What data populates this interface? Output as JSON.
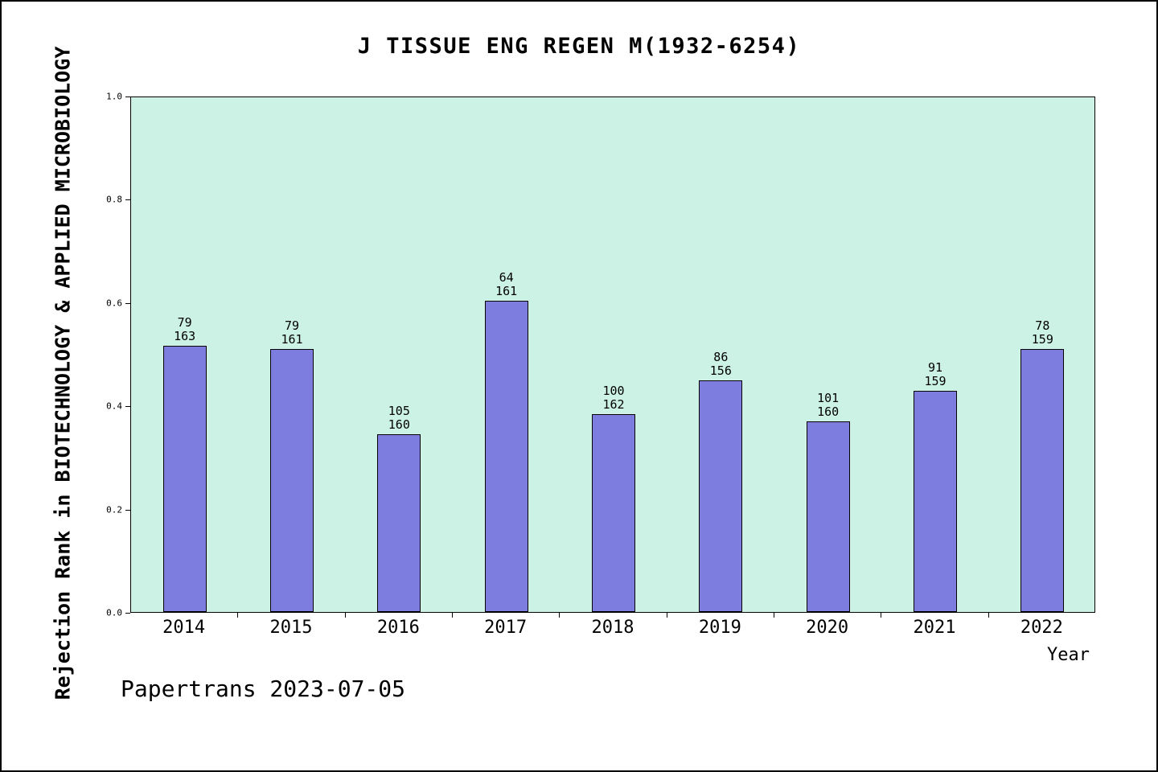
{
  "title": "J TISSUE ENG REGEN M(1932-6254)",
  "footer": "Papertrans 2023-07-05",
  "colors": {
    "plot_background": "#ccf2e6",
    "bar_fill": "#7d7de0",
    "bar_border": "#000000",
    "axis": "#000000"
  },
  "chart_data": {
    "type": "bar",
    "title": "J TISSUE ENG REGEN M(1932-6254)",
    "xlabel": "Year",
    "ylabel": "Rejection Rank in BIOTECHNOLOGY & APPLIED MICROBIOLOGY",
    "ylim": [
      0.0,
      1.0
    ],
    "yticks": [
      "0.0",
      "0.2",
      "0.4",
      "0.6",
      "0.8",
      "1.0"
    ],
    "grid": false,
    "legend": "none",
    "categories": [
      "2014",
      "2015",
      "2016",
      "2017",
      "2018",
      "2019",
      "2020",
      "2021",
      "2022"
    ],
    "series": [
      {
        "name": "rank",
        "values": [
          79,
          79,
          105,
          64,
          100,
          86,
          101,
          91,
          78
        ]
      },
      {
        "name": "total",
        "values": [
          163,
          161,
          160,
          161,
          162,
          156,
          160,
          159,
          159
        ]
      }
    ],
    "bar_height_fraction": [
      0.5153,
      0.5093,
      0.3438,
      0.6025,
      0.3827,
      0.4487,
      0.3688,
      0.4277,
      0.5094
    ],
    "bar_label_format": "rank over total, two lines above each bar"
  }
}
